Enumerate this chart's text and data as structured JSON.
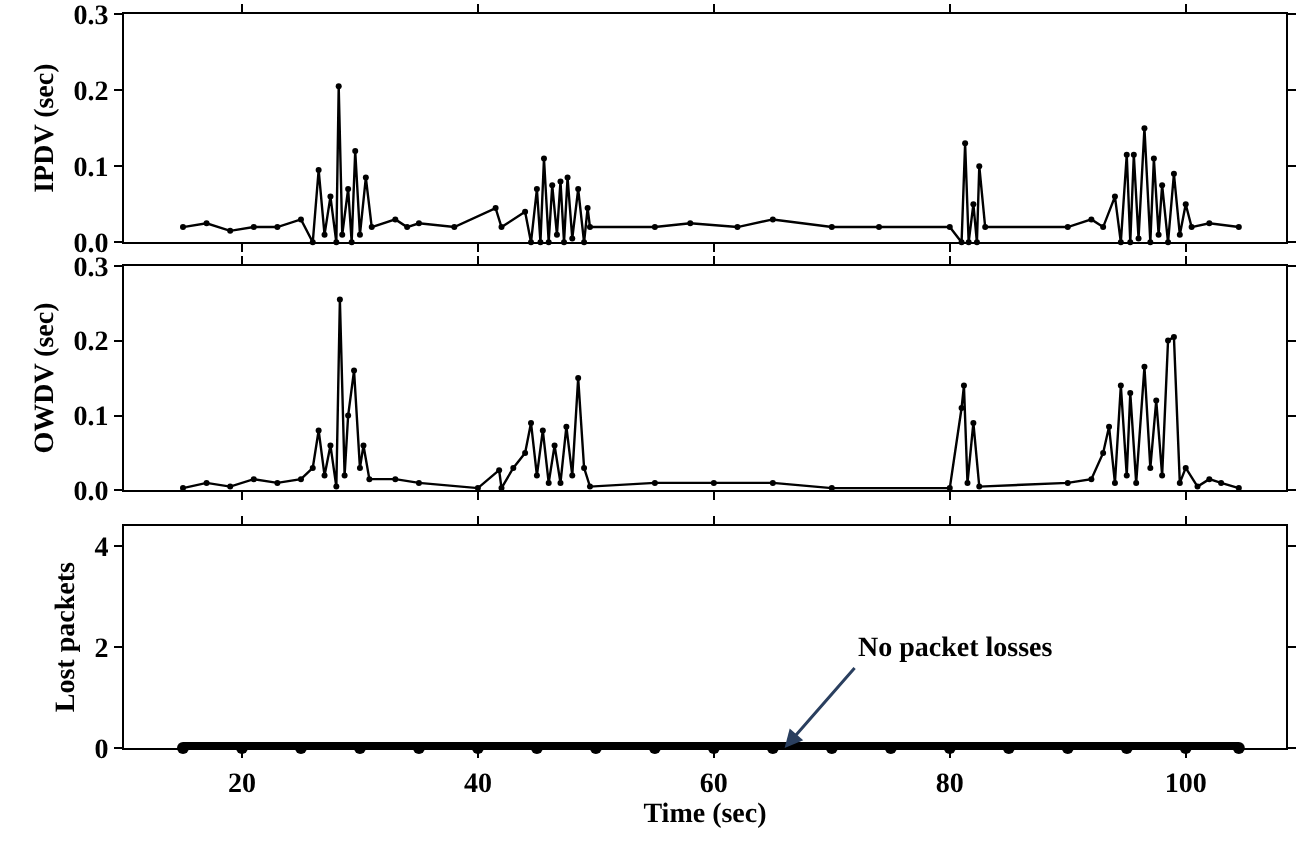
{
  "chart_data": [
    {
      "type": "line",
      "ylabel": "IPDV (sec)",
      "tick_labels": "y",
      "marker": "circle",
      "line_style": "solid",
      "xlim": [
        10,
        108.5
      ],
      "xticks": [
        20,
        40,
        60,
        80,
        100
      ],
      "ylim": [
        0,
        0.3
      ],
      "yticks": [
        {
          "value": 0,
          "label": "0.0"
        },
        {
          "value": 0.1,
          "label": "0.1"
        },
        {
          "value": 0.2,
          "label": "0.2"
        },
        {
          "value": 0.3,
          "label": "0.3"
        }
      ],
      "series": [
        {
          "color": "#000000",
          "x": [
            15,
            17,
            19,
            21,
            23,
            25,
            26,
            26.5,
            27,
            27.5,
            28,
            28.2,
            28.5,
            29,
            29.3,
            29.6,
            30,
            30.5,
            31,
            33,
            34,
            35,
            38,
            41.5,
            42,
            44,
            44.5,
            45,
            45.3,
            45.6,
            46,
            46.3,
            46.7,
            47,
            47.3,
            47.6,
            48,
            48.5,
            49,
            49.3,
            49.5,
            55,
            58,
            62,
            65,
            70,
            74,
            80,
            81,
            81.3,
            81.6,
            82,
            82.3,
            82.5,
            83,
            90,
            92,
            93,
            94,
            94.5,
            95,
            95.3,
            95.6,
            96,
            96.5,
            97,
            97.3,
            97.7,
            98,
            98.5,
            99,
            99.5,
            100,
            100.5,
            102,
            104.5
          ],
          "values": [
            0.02,
            0.025,
            0.015,
            0.02,
            0.02,
            0.03,
            0.0,
            0.095,
            0.01,
            0.06,
            0.0,
            0.205,
            0.01,
            0.07,
            0.0,
            0.12,
            0.01,
            0.085,
            0.02,
            0.03,
            0.02,
            0.025,
            0.02,
            0.045,
            0.02,
            0.04,
            0.0,
            0.07,
            0.0,
            0.11,
            0.0,
            0.075,
            0.01,
            0.08,
            0.0,
            0.085,
            0.005,
            0.07,
            0.0,
            0.045,
            0.02,
            0.02,
            0.025,
            0.02,
            0.03,
            0.02,
            0.02,
            0.02,
            0.0,
            0.13,
            0.0,
            0.05,
            0.0,
            0.1,
            0.02,
            0.02,
            0.03,
            0.02,
            0.06,
            0.0,
            0.115,
            0.0,
            0.115,
            0.005,
            0.15,
            0.0,
            0.11,
            0.01,
            0.075,
            0.0,
            0.09,
            0.01,
            0.05,
            0.02,
            0.025,
            0.02
          ]
        }
      ]
    },
    {
      "type": "line",
      "ylabel": "OWDV (sec)",
      "tick_labels": "y",
      "marker": "circle",
      "line_style": "solid",
      "xlim": [
        10,
        108.5
      ],
      "xticks": [
        20,
        40,
        60,
        80,
        100
      ],
      "ylim": [
        0,
        0.3
      ],
      "yticks": [
        {
          "value": 0,
          "label": "0.0"
        },
        {
          "value": 0.1,
          "label": "0.1"
        },
        {
          "value": 0.2,
          "label": "0.2"
        },
        {
          "value": 0.3,
          "label": "0.3"
        }
      ],
      "series": [
        {
          "color": "#000000",
          "x": [
            15,
            17,
            19,
            21,
            23,
            25,
            26,
            26.5,
            27,
            27.5,
            28,
            28.3,
            28.7,
            29,
            29.5,
            30,
            30.3,
            30.8,
            33,
            35,
            40,
            41.8,
            42,
            43,
            44,
            44.5,
            45,
            45.5,
            46,
            46.5,
            47,
            47.5,
            48,
            48.5,
            49,
            49.5,
            55,
            60,
            65,
            70,
            80,
            81,
            81.2,
            81.5,
            82,
            82.5,
            90,
            92,
            93,
            93.5,
            94,
            94.5,
            95,
            95.3,
            95.8,
            96.5,
            97,
            97.5,
            98,
            98.5,
            99,
            99.5,
            100,
            101,
            102,
            103,
            104.5
          ],
          "values": [
            0.003,
            0.01,
            0.005,
            0.015,
            0.01,
            0.015,
            0.03,
            0.08,
            0.02,
            0.06,
            0.005,
            0.255,
            0.02,
            0.1,
            0.16,
            0.03,
            0.06,
            0.015,
            0.015,
            0.01,
            0.003,
            0.027,
            0.003,
            0.03,
            0.05,
            0.09,
            0.02,
            0.08,
            0.01,
            0.06,
            0.01,
            0.085,
            0.02,
            0.15,
            0.03,
            0.005,
            0.01,
            0.01,
            0.01,
            0.003,
            0.003,
            0.11,
            0.14,
            0.01,
            0.09,
            0.005,
            0.01,
            0.015,
            0.05,
            0.085,
            0.01,
            0.14,
            0.02,
            0.13,
            0.01,
            0.165,
            0.03,
            0.12,
            0.02,
            0.2,
            0.205,
            0.01,
            0.03,
            0.005,
            0.015,
            0.01,
            0.003
          ]
        }
      ]
    },
    {
      "type": "line",
      "ylabel": "Lost packets",
      "xlabel": "Time (sec)",
      "marker": "circle",
      "line_style": "solid",
      "xlim": [
        10,
        108.5
      ],
      "xticks": [
        20,
        40,
        60,
        80,
        100
      ],
      "ylim": [
        0,
        4.4
      ],
      "yticks": [
        0,
        2,
        4
      ],
      "annotations": [
        {
          "text": "No packet losses",
          "x": 66,
          "y": 0
        }
      ],
      "series": [
        {
          "color": "#000000",
          "x": [
            15,
            20,
            25,
            30,
            35,
            40,
            45,
            50,
            55,
            60,
            65,
            70,
            75,
            80,
            85,
            90,
            95,
            100,
            104.5
          ],
          "values": [
            0,
            0,
            0,
            0,
            0,
            0,
            0,
            0,
            0,
            0,
            0,
            0,
            0,
            0,
            0,
            0,
            0,
            0,
            0
          ]
        }
      ]
    }
  ]
}
